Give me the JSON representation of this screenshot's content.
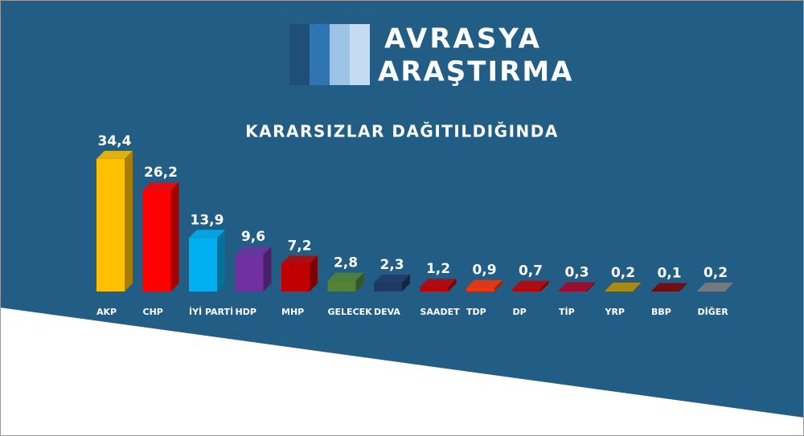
{
  "logo": {
    "line1": "AVRASYA",
    "line2": "ARAŞTIRMA"
  },
  "chart_data": {
    "type": "bar",
    "title": "KARARSIZLAR DAĞITILDIĞINDA",
    "categories": [
      "AKP",
      "CHP",
      "İYİ PARTİ",
      "HDP",
      "MHP",
      "GELECEK",
      "DEVA",
      "SAADET",
      "TDP",
      "DP",
      "TİP",
      "YRP",
      "BBP",
      "DİĞER"
    ],
    "values": [
      34.4,
      26.2,
      13.9,
      9.6,
      7.2,
      2.8,
      2.3,
      1.2,
      0.9,
      0.7,
      0.3,
      0.2,
      0.1,
      0.2
    ],
    "value_labels": [
      "34,4",
      "26,2",
      "13,9",
      "9,6",
      "7,2",
      "2,8",
      "2,3",
      "1,2",
      "0,9",
      "0,7",
      "0,3",
      "0,2",
      "0,1",
      "0,2"
    ],
    "colors": [
      "#ffc000",
      "#ff0000",
      "#00b0f0",
      "#7030a0",
      "#c00000",
      "#548235",
      "#1f3864",
      "#c00000",
      "#ff3300",
      "#c00000",
      "#b00020",
      "#bf9000",
      "#7f0000",
      "#7f7f7f"
    ]
  }
}
